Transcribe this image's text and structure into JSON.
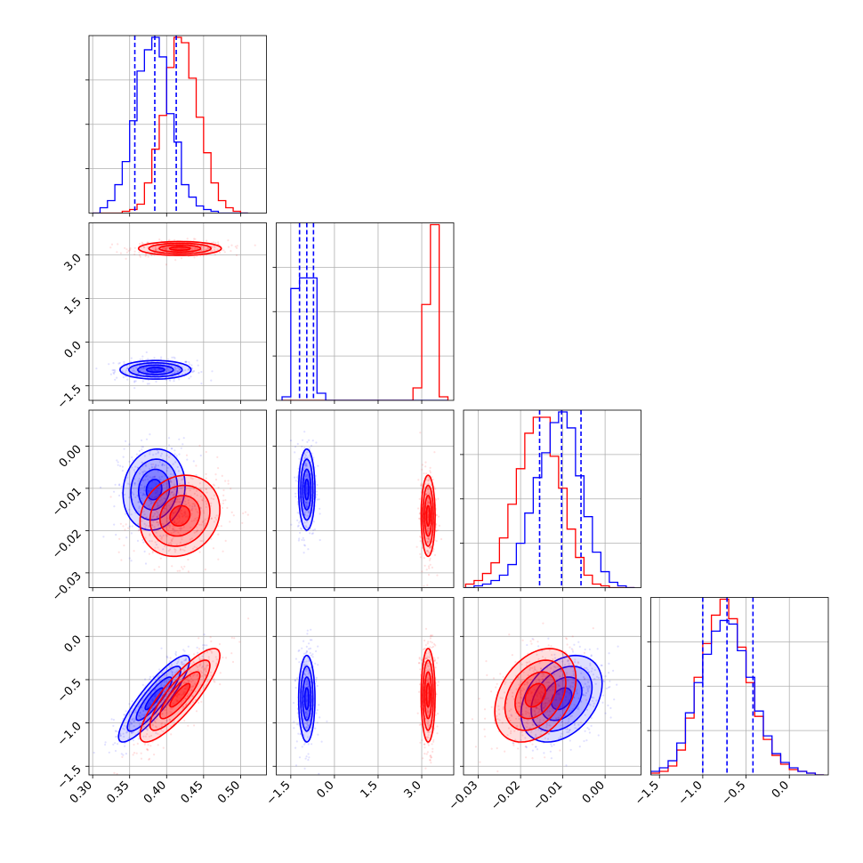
{
  "chart_data": {
    "type": "corner",
    "series": [
      {
        "name": "",
        "color": "#0000ff",
        "key": "blue"
      },
      {
        "name": "",
        "color": "#ff0000",
        "key": "red"
      }
    ],
    "params": [
      {
        "range": [
          0.295,
          0.535
        ],
        "ticks": [
          0.3,
          0.35,
          0.4,
          0.45,
          0.5
        ],
        "ticklabels": [
          "0.30",
          "0.35",
          "0.40",
          "0.45",
          "0.50"
        ]
      },
      {
        "range": [
          -2.0,
          4.1
        ],
        "ticks": [
          -1.5,
          0.0,
          1.5,
          3.0
        ],
        "ticklabels": [
          "−1.5",
          "0.0",
          "1.5",
          "3.0"
        ]
      },
      {
        "range": [
          -0.0335,
          0.0085
        ],
        "ticks": [
          -0.03,
          -0.02,
          -0.01,
          0.0
        ],
        "ticklabels": [
          "−0.03",
          "−0.02",
          "−0.01",
          "0.00"
        ]
      },
      {
        "range": [
          -1.6,
          0.45
        ],
        "ticks": [
          -1.5,
          -1.0,
          -0.5,
          0.0
        ],
        "ticklabels": [
          "−1.5",
          "−1.0",
          "−0.5",
          "0.0"
        ]
      }
    ],
    "quantiles": {
      "blue": [
        [
          0.357,
          0.384,
          0.413
        ],
        [
          -1.2,
          -0.95,
          -0.72
        ],
        [
          -0.0155,
          -0.0103,
          -0.0057
        ],
        [
          -1.0,
          -0.72,
          -0.42
        ]
      ]
    },
    "histograms": [
      {
        "param": 0,
        "bins": [
          0.3,
          0.31,
          0.32,
          0.33,
          0.34,
          0.35,
          0.36,
          0.37,
          0.38,
          0.39,
          0.4,
          0.41,
          0.42,
          0.43,
          0.44,
          0.45,
          0.46,
          0.47,
          0.48,
          0.49,
          0.5,
          0.51
        ],
        "blue": [
          0.0,
          0.03,
          0.07,
          0.16,
          0.29,
          0.52,
          0.8,
          0.92,
          0.99,
          0.88,
          0.56,
          0.4,
          0.16,
          0.09,
          0.04,
          0.02,
          0.01,
          0.0,
          0.0,
          0.0,
          0.0
        ],
        "red": [
          0.0,
          0.0,
          0.0,
          0.0,
          0.01,
          0.02,
          0.05,
          0.17,
          0.36,
          0.55,
          0.82,
          0.99,
          0.96,
          0.76,
          0.54,
          0.34,
          0.17,
          0.07,
          0.03,
          0.01,
          0.0
        ]
      },
      {
        "param": 1,
        "bins": [
          -1.8,
          -1.5,
          -1.2,
          -0.9,
          -0.6,
          -0.3,
          0.0,
          0.3,
          0.6,
          0.9,
          1.2,
          1.5,
          1.8,
          2.1,
          2.4,
          2.7,
          3.0,
          3.3,
          3.6,
          3.9
        ],
        "blue": [
          0.02,
          0.63,
          0.69,
          0.69,
          0.04,
          0.0,
          0.0,
          0.0,
          0.0,
          0.0,
          0.0,
          0.0,
          0.0,
          0.0,
          0.0,
          0.0,
          0.0,
          0.0,
          0.0
        ],
        "red": [
          0.0,
          0.0,
          0.0,
          0.0,
          0.0,
          0.0,
          0.0,
          0.0,
          0.0,
          0.0,
          0.0,
          0.0,
          0.0,
          0.0,
          0.0,
          0.07,
          0.54,
          0.99,
          0.02
        ]
      },
      {
        "param": 2,
        "bins": [
          -0.033,
          -0.031,
          -0.029,
          -0.027,
          -0.025,
          -0.023,
          -0.021,
          -0.019,
          -0.017,
          -0.015,
          -0.013,
          -0.011,
          -0.009,
          -0.007,
          -0.005,
          -0.003,
          -0.001,
          0.001,
          0.003,
          0.005,
          0.007
        ],
        "blue": [
          0.0,
          0.01,
          0.02,
          0.04,
          0.07,
          0.13,
          0.25,
          0.42,
          0.62,
          0.76,
          0.93,
          0.99,
          0.9,
          0.63,
          0.4,
          0.2,
          0.09,
          0.03,
          0.01,
          0.0
        ],
        "red": [
          0.02,
          0.04,
          0.08,
          0.14,
          0.28,
          0.47,
          0.67,
          0.87,
          0.96,
          0.96,
          0.74,
          0.56,
          0.33,
          0.17,
          0.07,
          0.02,
          0.01,
          0.0,
          0.0,
          0.0
        ]
      },
      {
        "param": 3,
        "bins": [
          -1.6,
          -1.5,
          -1.4,
          -1.3,
          -1.2,
          -1.1,
          -1.0,
          -0.9,
          -0.8,
          -0.7,
          -0.6,
          -0.5,
          -0.4,
          -0.3,
          -0.2,
          -0.1,
          0.0,
          0.1,
          0.2,
          0.3,
          0.4
        ],
        "blue": [
          0.02,
          0.04,
          0.08,
          0.18,
          0.35,
          0.52,
          0.68,
          0.81,
          0.87,
          0.85,
          0.7,
          0.55,
          0.36,
          0.22,
          0.12,
          0.07,
          0.04,
          0.02,
          0.01,
          0.0
        ],
        "red": [
          0.01,
          0.02,
          0.05,
          0.14,
          0.32,
          0.55,
          0.74,
          0.9,
          0.99,
          0.88,
          0.72,
          0.52,
          0.33,
          0.2,
          0.11,
          0.06,
          0.03,
          0.02,
          0.01,
          0.0
        ]
      }
    ],
    "pairs": [
      {
        "row": 1,
        "col": 0,
        "blue": {
          "mean": [
            0.385,
            -0.95
          ],
          "sd": [
            0.024,
            0.16
          ],
          "rho": 0.0
        },
        "red": {
          "mean": [
            0.418,
            3.22
          ],
          "sd": [
            0.028,
            0.12
          ],
          "rho": 0.0
        }
      },
      {
        "row": 2,
        "col": 0,
        "blue": {
          "mean": [
            0.383,
            -0.0103
          ],
          "sd": [
            0.021,
            0.0048
          ],
          "rho": 0.1
        },
        "red": {
          "mean": [
            0.418,
            -0.0165
          ],
          "sd": [
            0.027,
            0.0048
          ],
          "rho": 0.15
        }
      },
      {
        "row": 2,
        "col": 1,
        "blue": {
          "mean": [
            -0.95,
            -0.0103
          ],
          "sd": [
            0.14,
            0.0048
          ],
          "rho": 0.0
        },
        "red": {
          "mean": [
            3.22,
            -0.0165
          ],
          "sd": [
            0.12,
            0.0048
          ],
          "rho": 0.0
        }
      },
      {
        "row": 3,
        "col": 0,
        "blue": {
          "mean": [
            0.383,
            -0.72
          ],
          "sd": [
            0.024,
            0.25
          ],
          "rho": 0.88
        },
        "red": {
          "mean": [
            0.418,
            -0.68
          ],
          "sd": [
            0.027,
            0.27
          ],
          "rho": 0.85
        }
      },
      {
        "row": 3,
        "col": 1,
        "blue": {
          "mean": [
            -0.95,
            -0.72
          ],
          "sd": [
            0.14,
            0.25
          ],
          "rho": 0.0
        },
        "red": {
          "mean": [
            3.22,
            -0.68
          ],
          "sd": [
            0.12,
            0.27
          ],
          "rho": 0.0
        }
      },
      {
        "row": 3,
        "col": 2,
        "blue": {
          "mean": [
            -0.0103,
            -0.72
          ],
          "sd": [
            0.0048,
            0.25
          ],
          "rho": 0.35
        },
        "red": {
          "mean": [
            -0.0165,
            -0.68
          ],
          "sd": [
            0.0048,
            0.27
          ],
          "rho": 0.35
        }
      }
    ],
    "grid": true
  }
}
